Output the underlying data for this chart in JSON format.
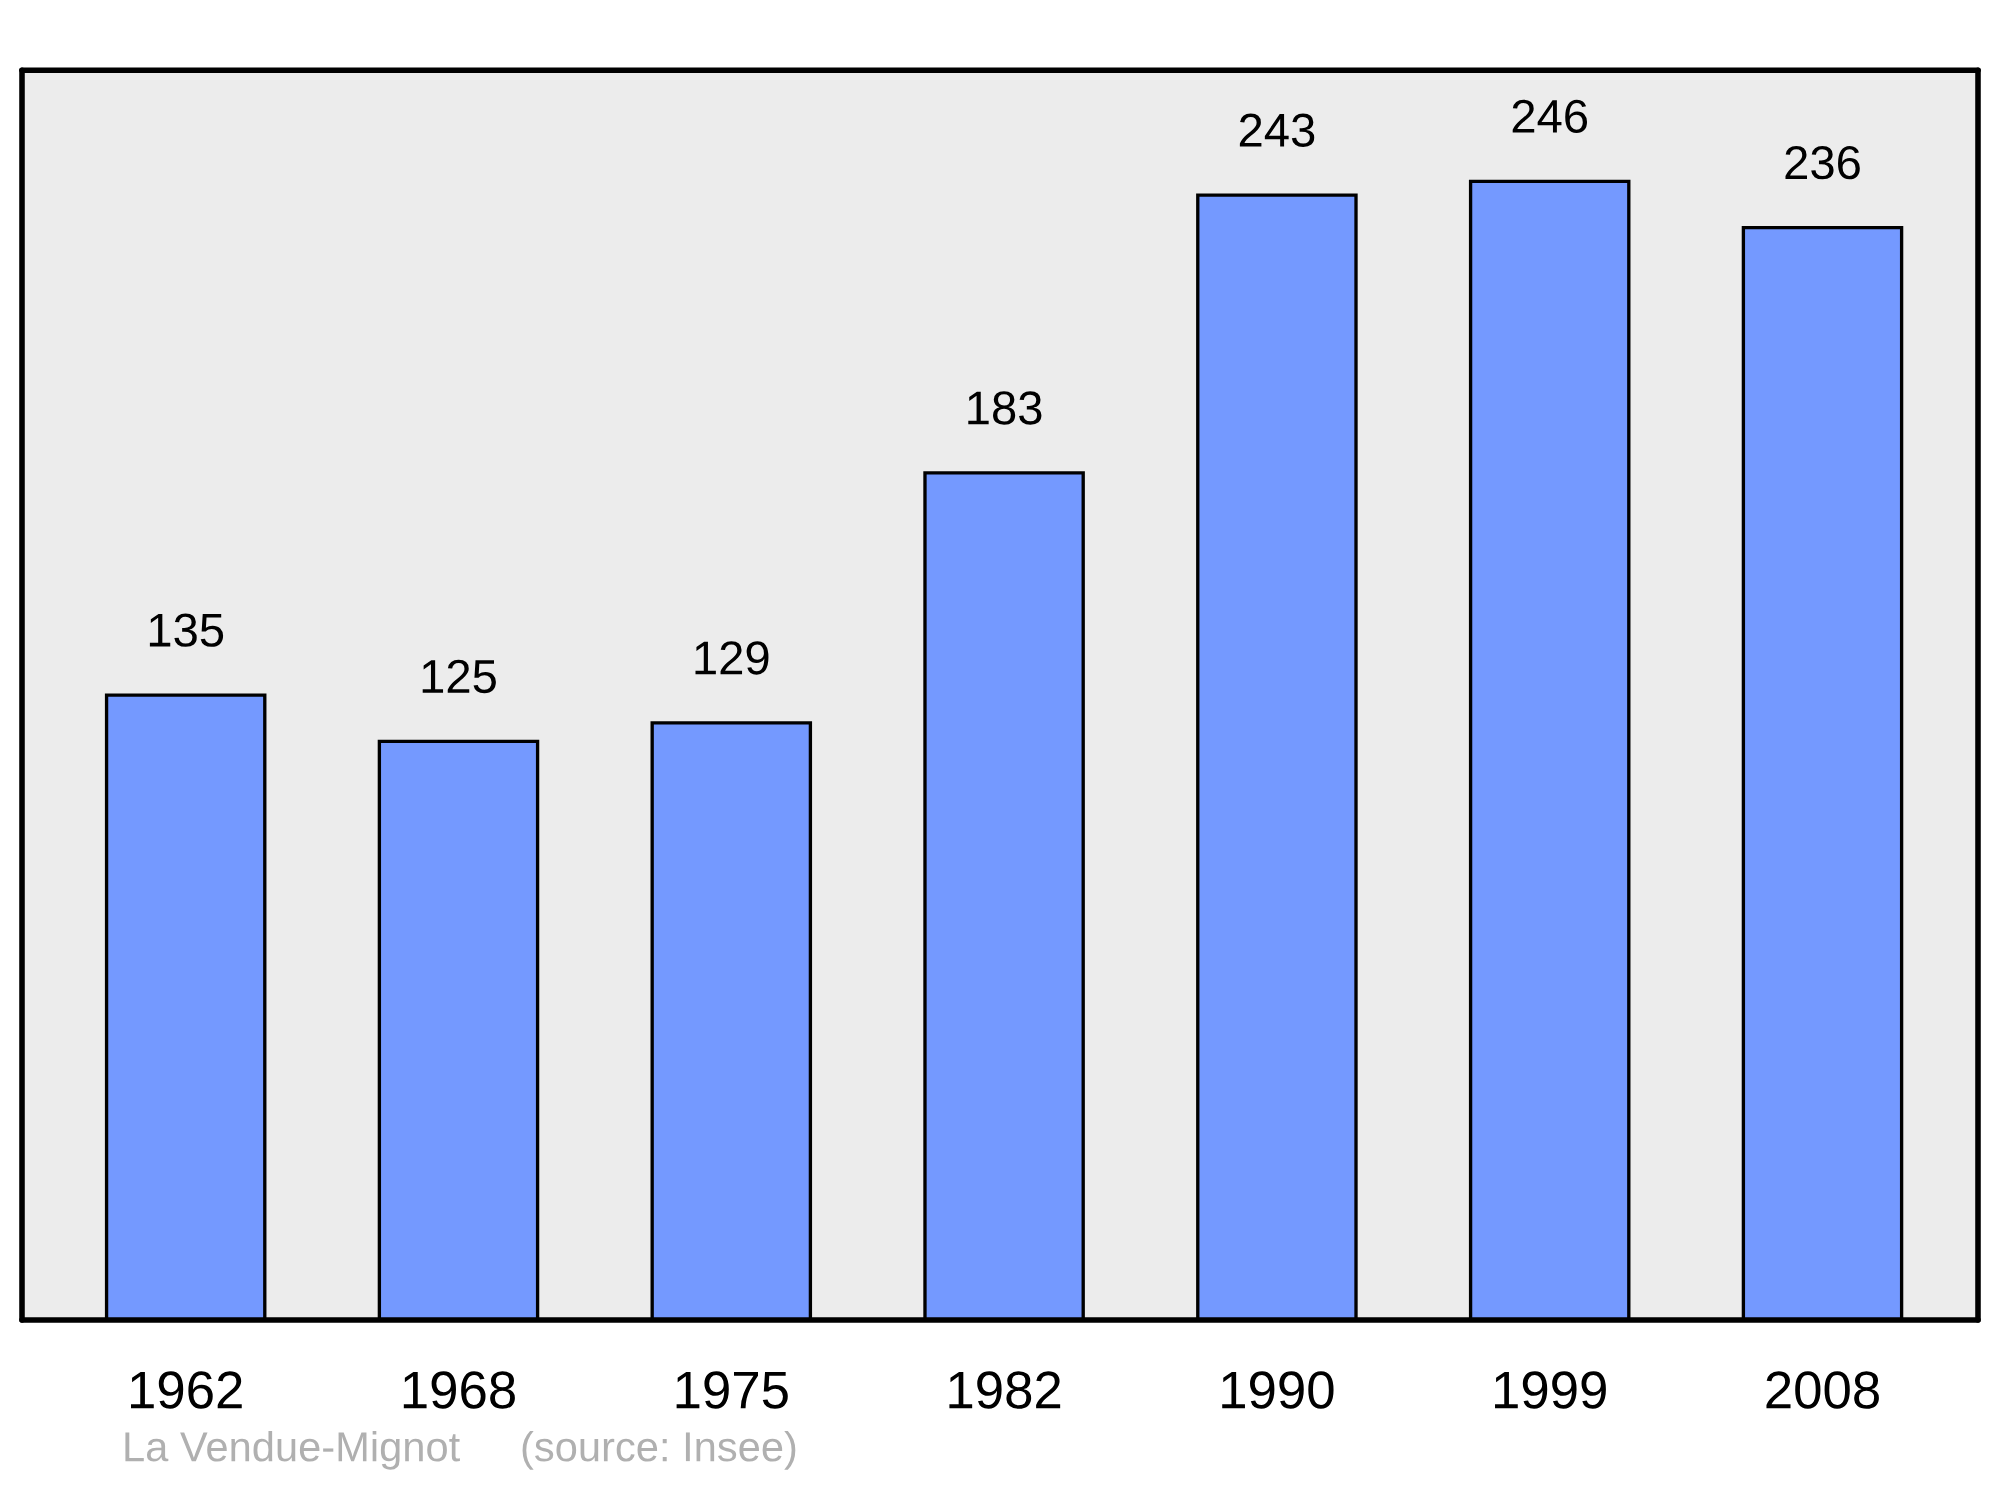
{
  "chart_data": {
    "type": "bar",
    "categories": [
      "1962",
      "1968",
      "1975",
      "1982",
      "1990",
      "1999",
      "2008"
    ],
    "values": [
      135,
      125,
      129,
      183,
      243,
      246,
      236
    ],
    "color": "#7499ff",
    "ylim": [
      0,
      270
    ],
    "data_labels": true,
    "tick_labels": "x",
    "grid": false,
    "annotations": [
      "La Vendue-Mignot",
      "(source: Insee)"
    ]
  }
}
